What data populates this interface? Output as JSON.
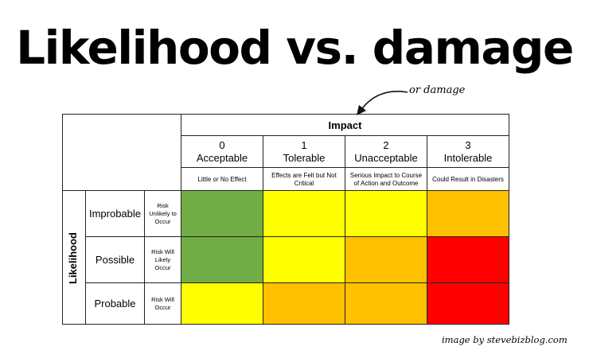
{
  "title": "Likelihood vs. damage",
  "annotation": "or damage",
  "credit": "image by stevebizblog.com",
  "matrix": {
    "impact_label": "Impact",
    "likelihood_label": "Likelihood",
    "impact_levels": [
      {
        "num": "0",
        "name": "Acceptable",
        "desc": "Little or No Effect"
      },
      {
        "num": "1",
        "name": "Tolerable",
        "desc": "Effects are Felt but Not Critical"
      },
      {
        "num": "2",
        "name": "Unacceptable",
        "desc": "Serious Impact to Course of Action and Outcome"
      },
      {
        "num": "3",
        "name": "Intolerable",
        "desc": "Could Result in Disasters"
      }
    ],
    "likelihood_levels": [
      {
        "name": "Improbable",
        "desc": "Risk Unlikely to Occur"
      },
      {
        "name": "Possible",
        "desc": "Risk Will Likely Occur"
      },
      {
        "name": "Probable",
        "desc": "Risk Will Occur"
      }
    ],
    "colors": {
      "green": "#70ad47",
      "yellow": "#ffff00",
      "orange": "#ffc000",
      "red": "#ff0000"
    },
    "grid": [
      [
        "green",
        "yellow",
        "yellow",
        "orange"
      ],
      [
        "green",
        "yellow",
        "orange",
        "red"
      ],
      [
        "yellow",
        "orange",
        "orange",
        "red"
      ]
    ]
  }
}
